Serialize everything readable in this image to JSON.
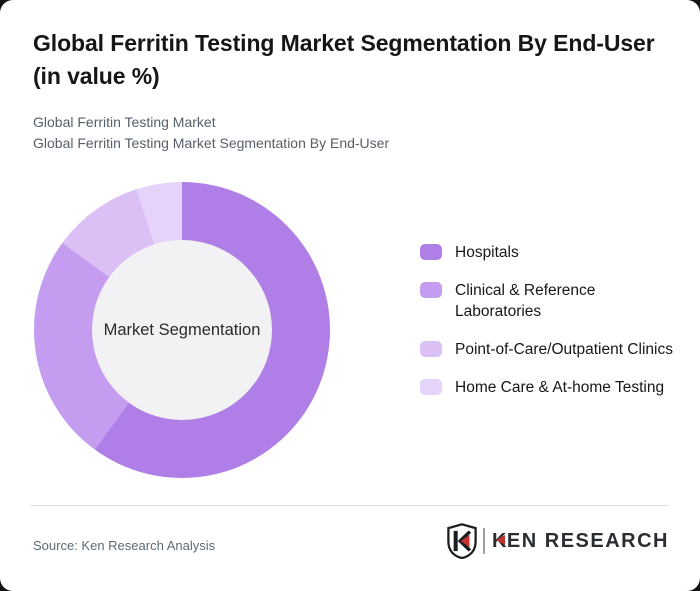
{
  "header": {
    "title": "Global Ferritin Testing Market Segmentation By End-User (in value %)",
    "subtitle_line1": "Global Ferritin Testing Market",
    "subtitle_line2": "Global Ferritin Testing Market Segmentation By End-User"
  },
  "chart_data": {
    "type": "pie",
    "subtype": "donut",
    "title": "Global Ferritin Testing Market Segmentation By End-User (in value %)",
    "center_label": "Market Segmentation",
    "unit": "value %",
    "categories": [
      "Hospitals",
      "Clinical & Reference Laboratories",
      "Point-of-Care/Outpatient Clinics",
      "Home Care & At-home Testing"
    ],
    "values": [
      60,
      25,
      10,
      5
    ],
    "colors": [
      "#af7ee6",
      "#c59df0",
      "#dbc0f5",
      "#e6d3f9"
    ],
    "start_angle_deg": 0,
    "direction": "clockwise",
    "legend_position": "right",
    "data_labels_shown": false
  },
  "legend": {
    "items": [
      {
        "label": "Hospitals",
        "color": "#af7ee6"
      },
      {
        "label": "Clinical & Reference Laboratories",
        "color": "#c59df0"
      },
      {
        "label": "Point-of-Care/Outpatient Clinics",
        "color": "#dbc0f5"
      },
      {
        "label": "Home Care & At-home Testing",
        "color": "#e6d3f9"
      }
    ]
  },
  "footer": {
    "source_text": "Source: Ken Research Analysis",
    "logo": {
      "shield_letter": "K",
      "brand_text": "KEN RESEARCH",
      "accent_color": "#c5312e",
      "text_color": "#2a2e33"
    }
  }
}
